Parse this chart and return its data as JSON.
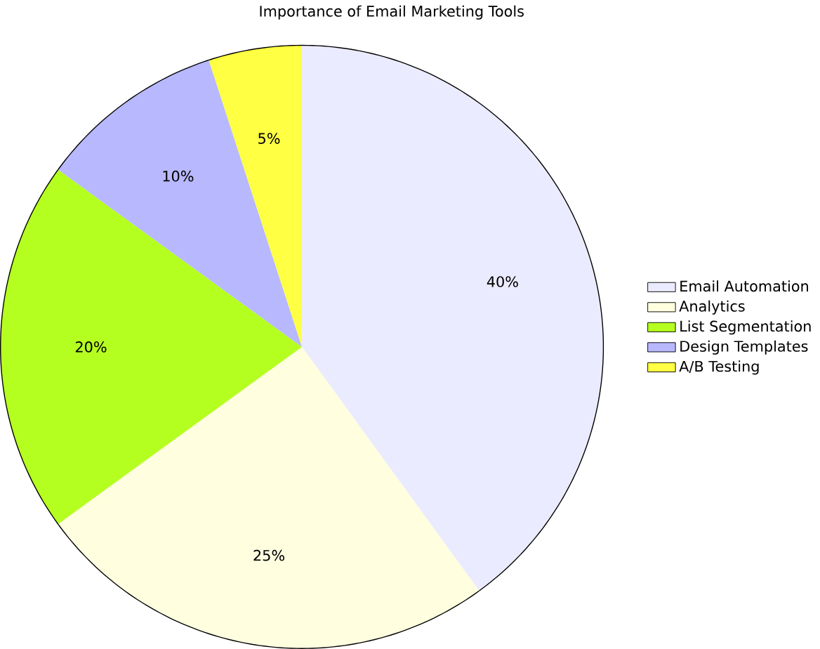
{
  "chart_data": {
    "type": "pie",
    "title": "Importance of Email Marketing Tools",
    "categories": [
      "Email Automation",
      "Analytics",
      "List Segmentation",
      "Design Templates",
      "A/B Testing"
    ],
    "values": [
      40,
      25,
      20,
      10,
      5
    ],
    "value_labels": [
      "40%",
      "25%",
      "20%",
      "10%",
      "5%"
    ],
    "colors": [
      "#ebebff",
      "#ffffe0",
      "#b5ff20",
      "#b8b8ff",
      "#ffff44"
    ],
    "legend": "right"
  }
}
